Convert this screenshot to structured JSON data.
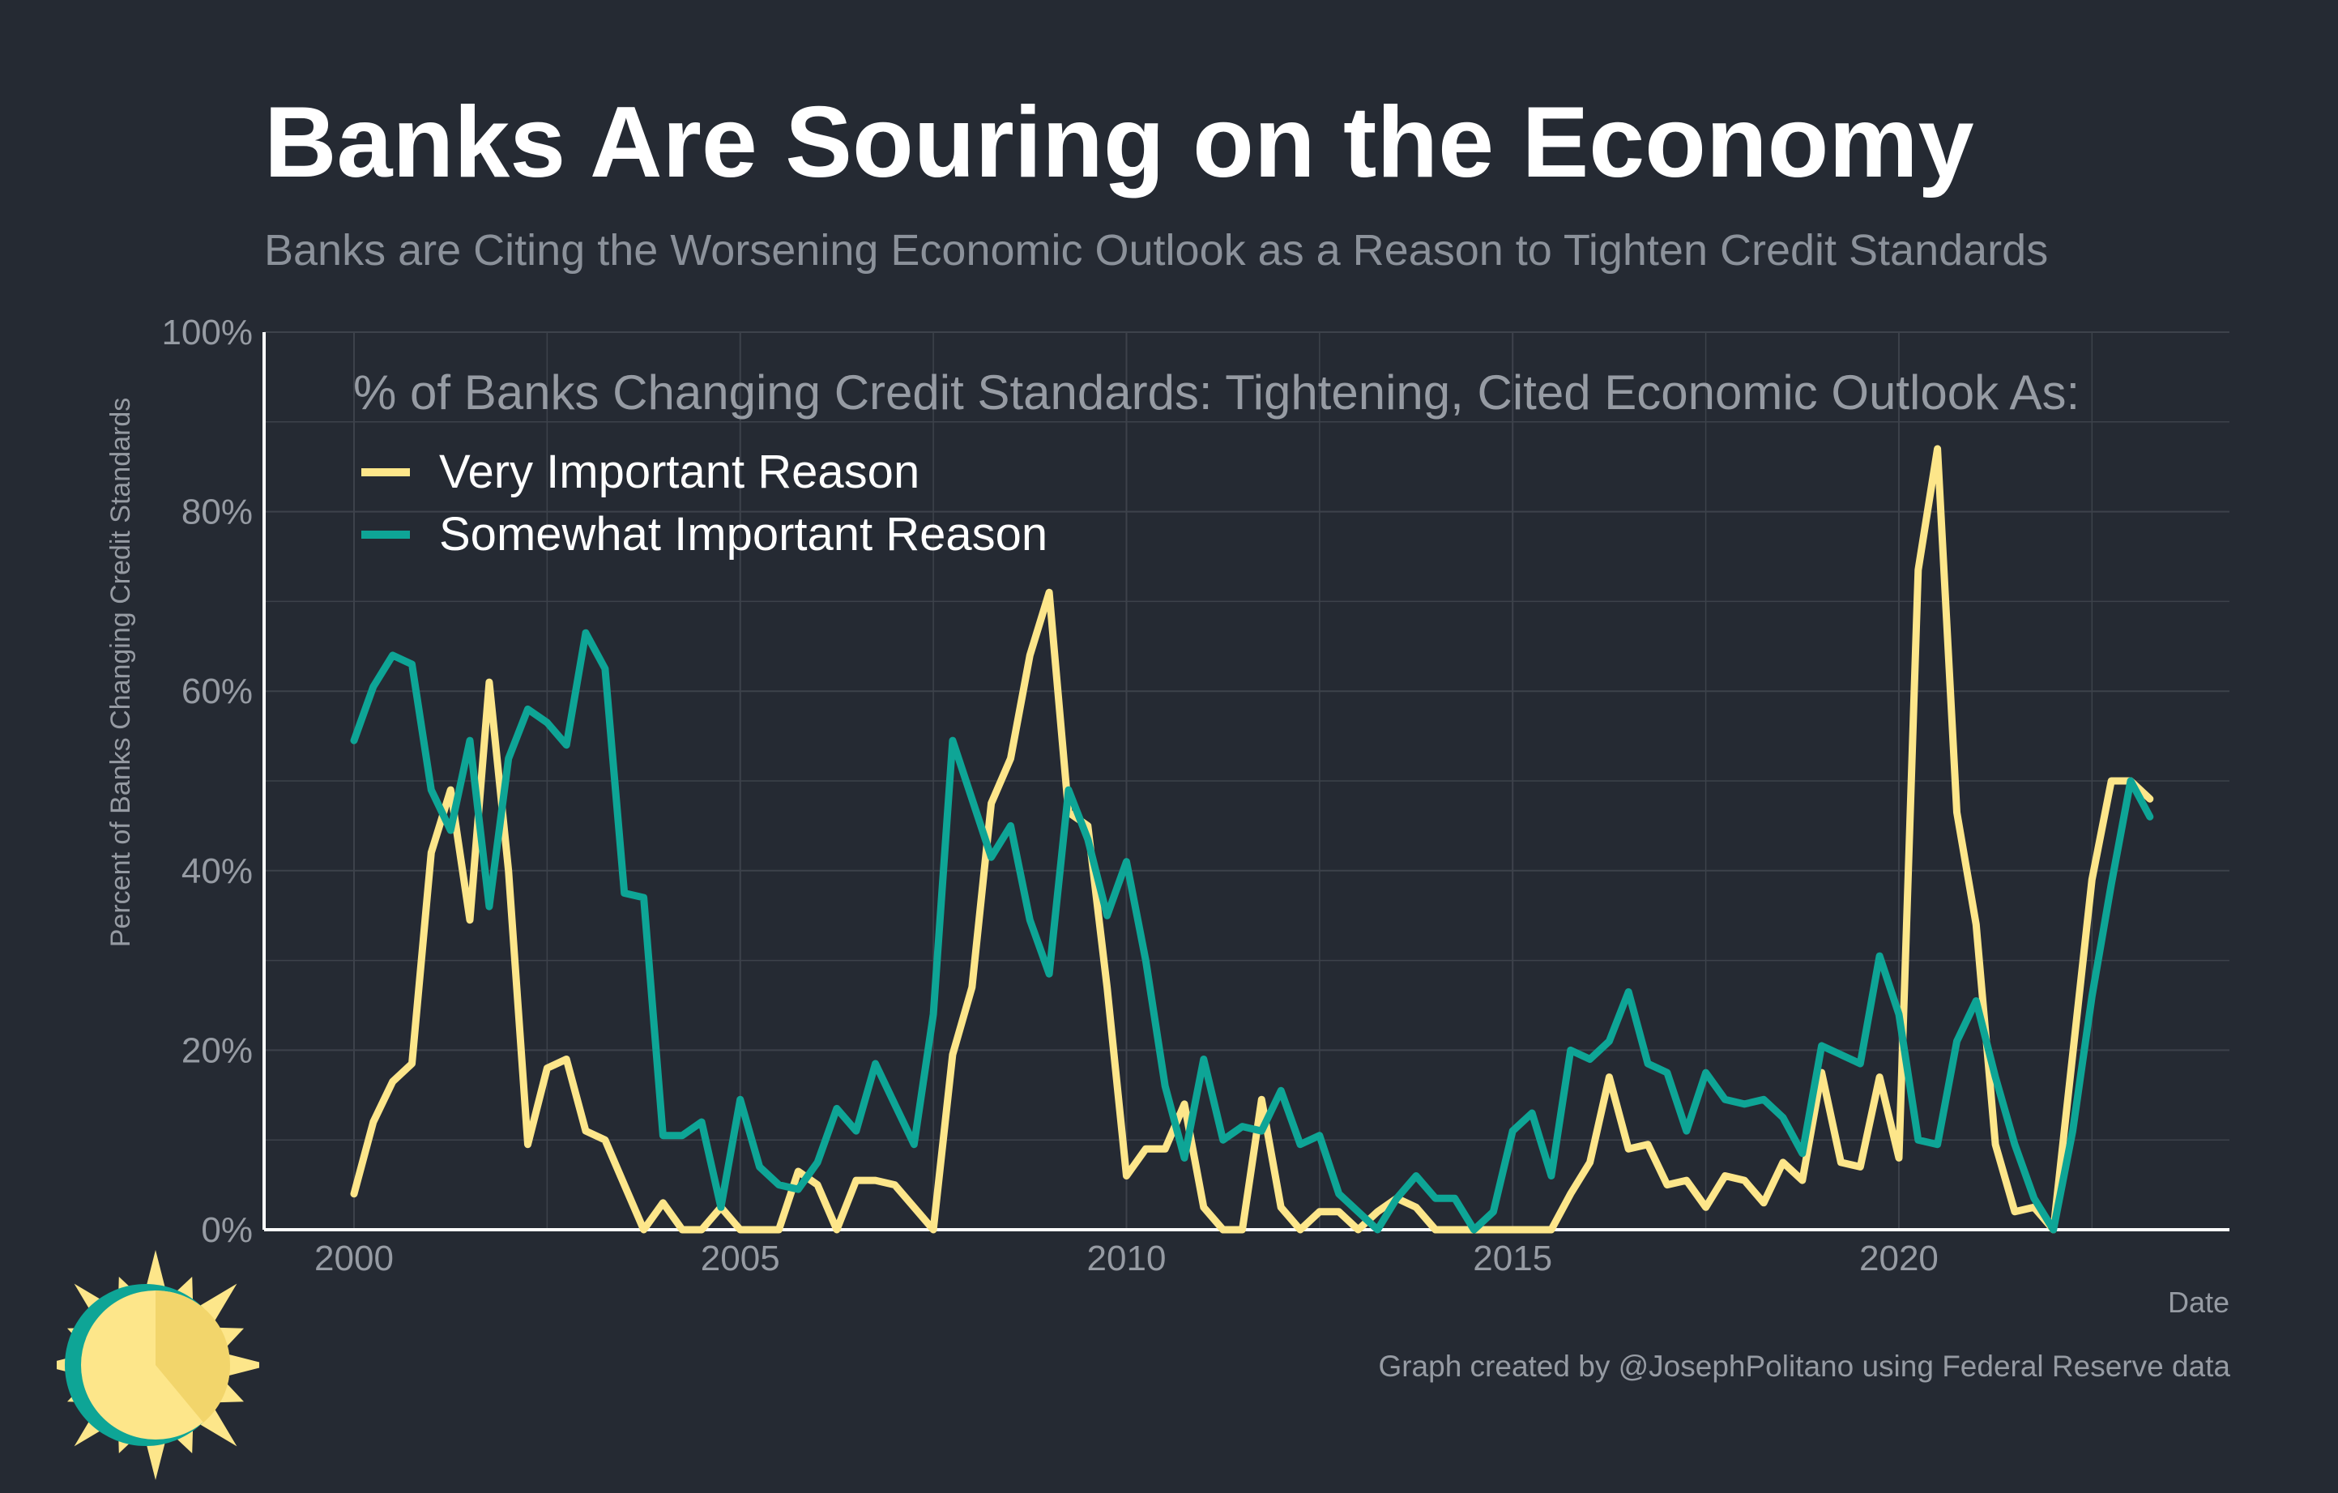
{
  "title": "Banks Are Souring on the Economy",
  "subtitle": "Banks are Citing the Worsening Economic Outlook as a Reason to Tighten Credit Standards",
  "credit": "Graph created by @JosephPolitano using Federal Reserve data",
  "colors": {
    "background": "#252a33",
    "very_important": "#fde68a",
    "somewhat_important": "#0ea596",
    "grid": "#3d424b",
    "axis": "#ffffff",
    "logo_sun": "#fde68a",
    "logo_ring": "#0ea596"
  },
  "logo": {
    "icon": "sun-logo-icon"
  },
  "chart_data": {
    "type": "line",
    "legend_title": "% of Banks Changing Credit Standards: Tightening, Cited Economic Outlook As:",
    "legend_position": "top-left",
    "ylabel": "Percent of Banks Changing Credit Standards",
    "xlabel": "Date",
    "xlim": [
      2000,
      2023
    ],
    "ylim": [
      0,
      100
    ],
    "x_ticks": [
      "2000",
      "2005",
      "2010",
      "2015",
      "2020"
    ],
    "y_ticks": [
      "0%",
      "20%",
      "40%",
      "60%",
      "80%",
      "100%"
    ],
    "grid": true,
    "series": [
      {
        "name": "Very Important Reason",
        "color": "#fde68a",
        "points": [
          [
            "2000-01",
            4
          ],
          [
            "2000-04",
            12
          ],
          [
            "2000-07",
            16.5
          ],
          [
            "2000-10",
            18.5
          ],
          [
            "2001-01",
            42
          ],
          [
            "2001-04",
            49
          ],
          [
            "2001-07",
            34.5
          ],
          [
            "2001-10",
            61
          ],
          [
            "2002-01",
            40
          ],
          [
            "2002-04",
            9.5
          ],
          [
            "2002-07",
            18
          ],
          [
            "2002-10",
            19
          ],
          [
            "2003-01",
            11
          ],
          [
            "2003-04",
            10
          ],
          [
            "2003-07",
            5
          ],
          [
            "2003-10",
            0
          ],
          [
            "2004-01",
            3
          ],
          [
            "2004-04",
            0
          ],
          [
            "2004-07",
            0
          ],
          [
            "2004-10",
            2.5
          ],
          [
            "2005-01",
            0
          ],
          [
            "2005-04",
            0
          ],
          [
            "2005-07",
            0
          ],
          [
            "2005-10",
            6.5
          ],
          [
            "2006-01",
            5
          ],
          [
            "2006-04",
            0
          ],
          [
            "2006-07",
            5.5
          ],
          [
            "2006-10",
            5.5
          ],
          [
            "2007-01",
            5
          ],
          [
            "2007-04",
            2.5
          ],
          [
            "2007-07",
            0
          ],
          [
            "2007-10",
            19.5
          ],
          [
            "2008-01",
            27
          ],
          [
            "2008-04",
            47.5
          ],
          [
            "2008-07",
            52.5
          ],
          [
            "2008-10",
            64
          ],
          [
            "2009-01",
            71
          ],
          [
            "2009-04",
            46.5
          ],
          [
            "2009-07",
            45
          ],
          [
            "2009-10",
            27
          ],
          [
            "2010-01",
            6
          ],
          [
            "2010-04",
            9
          ],
          [
            "2010-07",
            9
          ],
          [
            "2010-10",
            14
          ],
          [
            "2011-01",
            2.5
          ],
          [
            "2011-04",
            0
          ],
          [
            "2011-07",
            0
          ],
          [
            "2011-10",
            14.5
          ],
          [
            "2012-01",
            2.5
          ],
          [
            "2012-04",
            0
          ],
          [
            "2012-07",
            2
          ],
          [
            "2012-10",
            2
          ],
          [
            "2013-01",
            0
          ],
          [
            "2013-04",
            2
          ],
          [
            "2013-07",
            3.5
          ],
          [
            "2013-10",
            2.5
          ],
          [
            "2014-01",
            0
          ],
          [
            "2014-04",
            0
          ],
          [
            "2014-07",
            0
          ],
          [
            "2014-10",
            0
          ],
          [
            "2015-01",
            0
          ],
          [
            "2015-04",
            0
          ],
          [
            "2015-07",
            0
          ],
          [
            "2015-10",
            4
          ],
          [
            "2016-01",
            7.5
          ],
          [
            "2016-04",
            17
          ],
          [
            "2016-07",
            9
          ],
          [
            "2016-10",
            9.5
          ],
          [
            "2017-01",
            5
          ],
          [
            "2017-04",
            5.5
          ],
          [
            "2017-07",
            2.5
          ],
          [
            "2017-10",
            6
          ],
          [
            "2018-01",
            5.5
          ],
          [
            "2018-04",
            3
          ],
          [
            "2018-07",
            7.5
          ],
          [
            "2018-10",
            5.5
          ],
          [
            "2019-01",
            17.5
          ],
          [
            "2019-04",
            7.5
          ],
          [
            "2019-07",
            7
          ],
          [
            "2019-10",
            17
          ],
          [
            "2020-01",
            8
          ],
          [
            "2020-04",
            73.5
          ],
          [
            "2020-07",
            87
          ],
          [
            "2020-10",
            46.5
          ],
          [
            "2021-01",
            34
          ],
          [
            "2021-04",
            9.5
          ],
          [
            "2021-07",
            2
          ],
          [
            "2021-10",
            2.5
          ],
          [
            "2022-01",
            0
          ],
          [
            "2022-04",
            19.5
          ],
          [
            "2022-07",
            39
          ],
          [
            "2022-10",
            50
          ],
          [
            "2023-01",
            50
          ],
          [
            "2023-04",
            48
          ]
        ]
      },
      {
        "name": "Somewhat Important Reason",
        "color": "#0ea596",
        "points": [
          [
            "2000-01",
            54.5
          ],
          [
            "2000-04",
            60.5
          ],
          [
            "2000-07",
            64
          ],
          [
            "2000-10",
            63
          ],
          [
            "2001-01",
            49
          ],
          [
            "2001-04",
            44.5
          ],
          [
            "2001-07",
            54.5
          ],
          [
            "2001-10",
            36
          ],
          [
            "2002-01",
            52.5
          ],
          [
            "2002-04",
            58
          ],
          [
            "2002-07",
            56.5
          ],
          [
            "2002-10",
            54
          ],
          [
            "2003-01",
            66.5
          ],
          [
            "2003-04",
            62.5
          ],
          [
            "2003-07",
            37.5
          ],
          [
            "2003-10",
            37
          ],
          [
            "2004-01",
            10.5
          ],
          [
            "2004-04",
            10.5
          ],
          [
            "2004-07",
            12
          ],
          [
            "2004-10",
            2.5
          ],
          [
            "2005-01",
            14.5
          ],
          [
            "2005-04",
            7
          ],
          [
            "2005-07",
            5
          ],
          [
            "2005-10",
            4.5
          ],
          [
            "2006-01",
            7.5
          ],
          [
            "2006-04",
            13.5
          ],
          [
            "2006-07",
            11
          ],
          [
            "2006-10",
            18.5
          ],
          [
            "2007-01",
            14
          ],
          [
            "2007-04",
            9.5
          ],
          [
            "2007-07",
            24
          ],
          [
            "2007-10",
            54.5
          ],
          [
            "2008-01",
            48
          ],
          [
            "2008-04",
            41.5
          ],
          [
            "2008-07",
            45
          ],
          [
            "2008-10",
            34.5
          ],
          [
            "2009-01",
            28.5
          ],
          [
            "2009-04",
            49
          ],
          [
            "2009-07",
            43.5
          ],
          [
            "2009-10",
            35
          ],
          [
            "2010-01",
            41
          ],
          [
            "2010-04",
            30
          ],
          [
            "2010-07",
            16
          ],
          [
            "2010-10",
            8
          ],
          [
            "2011-01",
            19
          ],
          [
            "2011-04",
            10
          ],
          [
            "2011-07",
            11.5
          ],
          [
            "2011-10",
            11
          ],
          [
            "2012-01",
            15.5
          ],
          [
            "2012-04",
            9.5
          ],
          [
            "2012-07",
            10.5
          ],
          [
            "2012-10",
            4
          ],
          [
            "2013-01",
            2
          ],
          [
            "2013-04",
            0
          ],
          [
            "2013-07",
            3.5
          ],
          [
            "2013-10",
            6
          ],
          [
            "2014-01",
            3.5
          ],
          [
            "2014-04",
            3.5
          ],
          [
            "2014-07",
            0
          ],
          [
            "2014-10",
            2
          ],
          [
            "2015-01",
            11
          ],
          [
            "2015-04",
            13
          ],
          [
            "2015-07",
            6
          ],
          [
            "2015-10",
            20
          ],
          [
            "2016-01",
            19
          ],
          [
            "2016-04",
            21
          ],
          [
            "2016-07",
            26.5
          ],
          [
            "2016-10",
            18.5
          ],
          [
            "2017-01",
            17.5
          ],
          [
            "2017-04",
            11
          ],
          [
            "2017-07",
            17.5
          ],
          [
            "2017-10",
            14.5
          ],
          [
            "2018-01",
            14
          ],
          [
            "2018-04",
            14.5
          ],
          [
            "2018-07",
            12.5
          ],
          [
            "2018-10",
            8.5
          ],
          [
            "2019-01",
            20.5
          ],
          [
            "2019-04",
            19.5
          ],
          [
            "2019-07",
            18.5
          ],
          [
            "2019-10",
            30.5
          ],
          [
            "2020-01",
            24
          ],
          [
            "2020-04",
            10
          ],
          [
            "2020-07",
            9.5
          ],
          [
            "2020-10",
            21
          ],
          [
            "2021-01",
            25.5
          ],
          [
            "2021-04",
            17
          ],
          [
            "2021-07",
            9.5
          ],
          [
            "2021-10",
            3.5
          ],
          [
            "2022-01",
            0
          ],
          [
            "2022-04",
            11
          ],
          [
            "2022-07",
            26
          ],
          [
            "2022-10",
            38.5
          ],
          [
            "2023-01",
            50
          ],
          [
            "2023-04",
            46
          ]
        ]
      }
    ]
  }
}
